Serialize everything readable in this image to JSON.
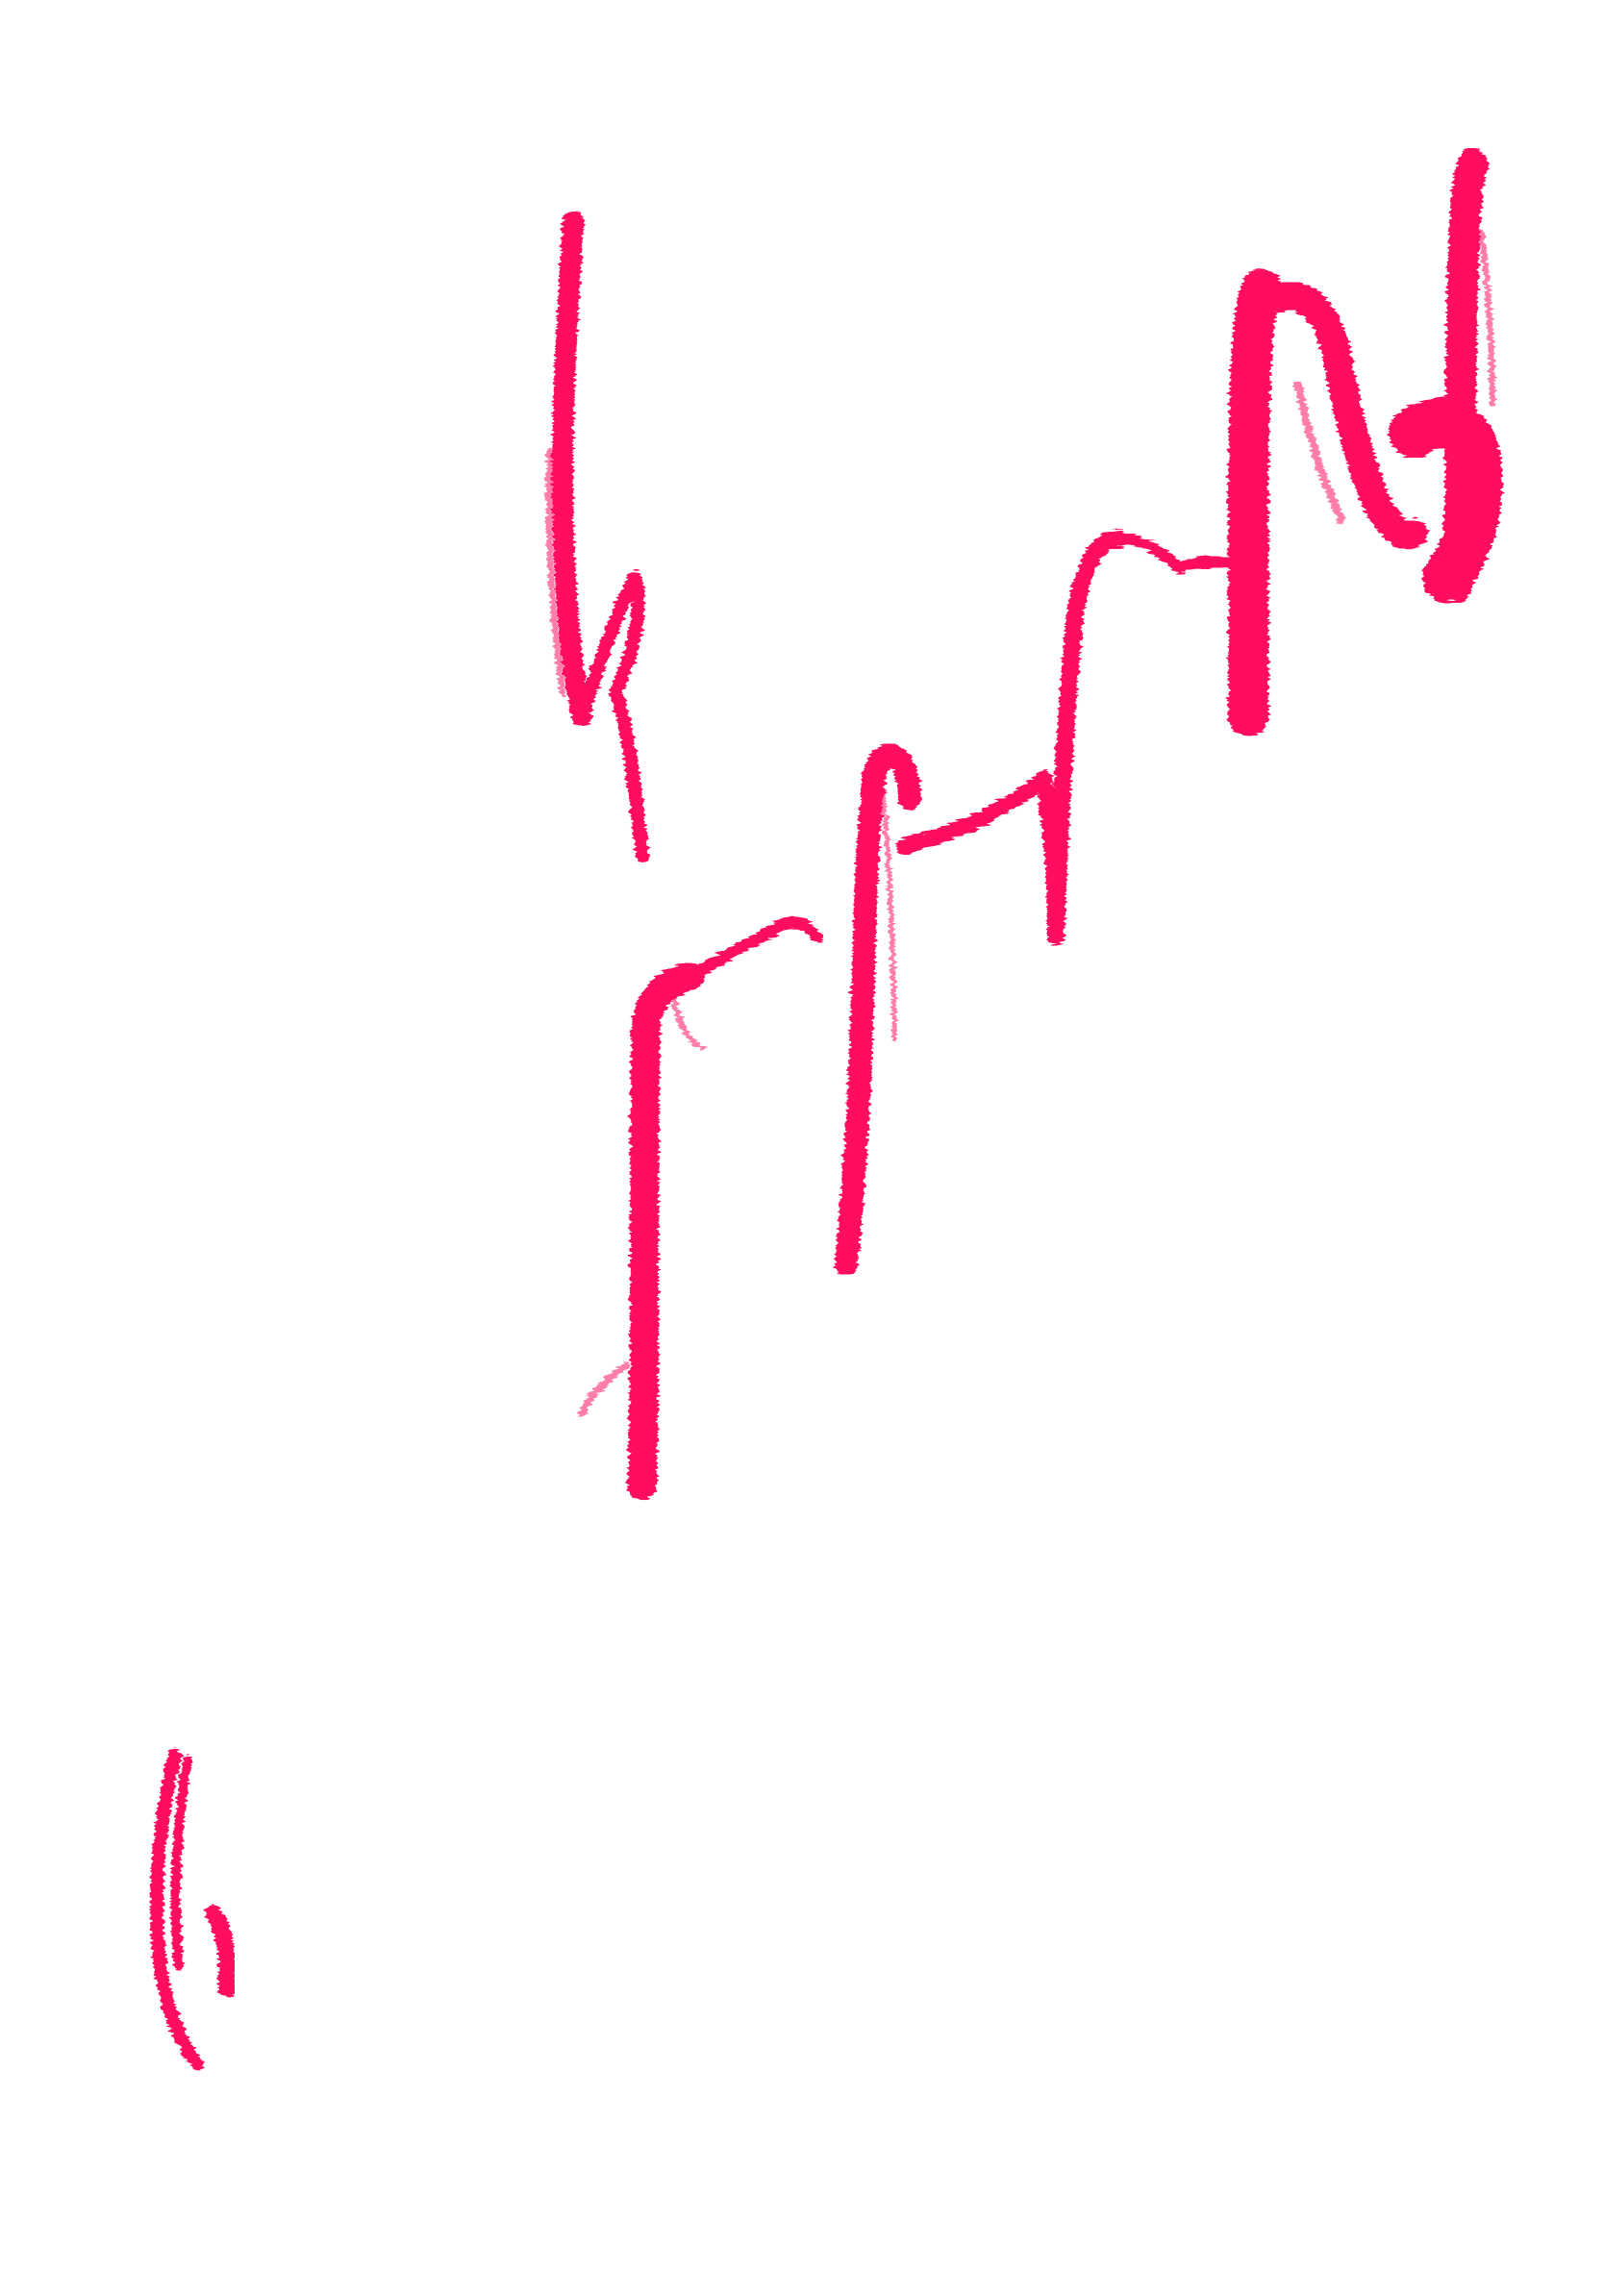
{
  "artwork": {
    "background_color": "#ffffff",
    "stroke_color": "#ff1060",
    "medium": "dry brush paint",
    "stroke_count": 6
  }
}
